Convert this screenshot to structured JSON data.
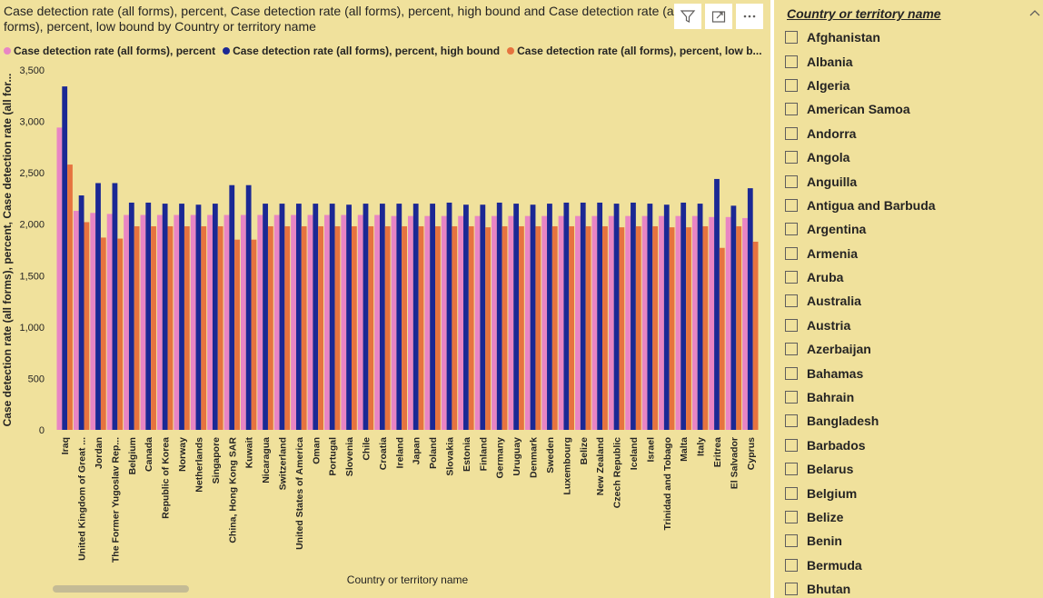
{
  "chart": {
    "title": "Case detection rate (all forms), percent, Case detection rate (all forms), percent, high bound and Case detection rate (all forms), percent, low bound by Country or territory name",
    "header_icons": [
      "filter-icon",
      "focus-mode-icon",
      "more-options-icon"
    ],
    "legend": [
      {
        "label": "Case detection rate (all forms), percent",
        "color": "#e885c4"
      },
      {
        "label": "Case detection rate (all forms), percent, high bound",
        "color": "#1b2894"
      },
      {
        "label": "Case detection rate (all forms), percent, low b...",
        "color": "#e6733f"
      }
    ]
  },
  "chart_data": {
    "type": "bar",
    "title": "Case detection rate (all forms), percent, Case detection rate (all forms), percent, high bound and Case detection rate (all forms), percent, low bound by Country or territory name",
    "xlabel": "Country or territory name",
    "ylabel": "Case detection rate (all forms), percent, Case detection rate (all for...",
    "ylim": [
      0,
      3500
    ],
    "yticks": [
      0,
      500,
      1000,
      1500,
      2000,
      2500,
      3000,
      3500
    ],
    "ytick_labels": [
      "0",
      "500",
      "1,000",
      "1,500",
      "2,000",
      "2,500",
      "3,000",
      "3,500"
    ],
    "grid": false,
    "legend_position": "top",
    "categories": [
      "Iraq",
      "United Kingdom of Great ...",
      "Jordan",
      "The Former Yugoslav Rep...",
      "Belgium",
      "Canada",
      "Republic of Korea",
      "Norway",
      "Netherlands",
      "Singapore",
      "China, Hong Kong SAR",
      "Kuwait",
      "Nicaragua",
      "Switzerland",
      "United States of America",
      "Oman",
      "Portugal",
      "Slovenia",
      "Chile",
      "Croatia",
      "Ireland",
      "Japan",
      "Poland",
      "Slovakia",
      "Estonia",
      "Finland",
      "Germany",
      "Uruguay",
      "Denmark",
      "Sweden",
      "Luxembourg",
      "Belize",
      "New Zealand",
      "Czech Republic",
      "Iceland",
      "Israel",
      "Trinidad and Tobago",
      "Malta",
      "Italy",
      "Eritrea",
      "El Salvador",
      "Cyprus"
    ],
    "series": [
      {
        "name": "Case detection rate (all forms), percent",
        "color": "#e885c4",
        "values": [
          2940,
          2130,
          2110,
          2100,
          2090,
          2090,
          2090,
          2090,
          2090,
          2090,
          2090,
          2090,
          2090,
          2090,
          2090,
          2090,
          2090,
          2090,
          2090,
          2090,
          2080,
          2080,
          2080,
          2080,
          2080,
          2080,
          2080,
          2080,
          2080,
          2080,
          2080,
          2080,
          2080,
          2080,
          2080,
          2080,
          2080,
          2080,
          2080,
          2070,
          2070,
          2060
        ]
      },
      {
        "name": "Case detection rate (all forms), percent, high bound",
        "color": "#1b2894",
        "values": [
          3340,
          2280,
          2400,
          2400,
          2210,
          2210,
          2200,
          2200,
          2190,
          2200,
          2380,
          2380,
          2200,
          2200,
          2200,
          2200,
          2200,
          2190,
          2200,
          2200,
          2200,
          2200,
          2200,
          2210,
          2190,
          2190,
          2210,
          2200,
          2190,
          2200,
          2210,
          2210,
          2210,
          2200,
          2210,
          2200,
          2190,
          2210,
          2200,
          2440,
          2180,
          2350
        ]
      },
      {
        "name": "Case detection rate (all forms), percent, low bound",
        "color": "#e6733f",
        "values": [
          2580,
          2020,
          1870,
          1860,
          1980,
          1980,
          1980,
          1980,
          1980,
          1980,
          1850,
          1850,
          1980,
          1980,
          1980,
          1980,
          1980,
          1980,
          1980,
          1980,
          1980,
          1980,
          1980,
          1980,
          1980,
          1970,
          1980,
          1980,
          1980,
          1980,
          1980,
          1980,
          1980,
          1970,
          1980,
          1980,
          1970,
          1970,
          1980,
          1770,
          1980,
          1830
        ]
      }
    ]
  },
  "slicer": {
    "header": "Country or territory name",
    "collapse_icon": "chevron-up-icon",
    "items": [
      "Afghanistan",
      "Albania",
      "Algeria",
      "American Samoa",
      "Andorra",
      "Angola",
      "Anguilla",
      "Antigua and Barbuda",
      "Argentina",
      "Armenia",
      "Aruba",
      "Australia",
      "Austria",
      "Azerbaijan",
      "Bahamas",
      "Bahrain",
      "Bangladesh",
      "Barbados",
      "Belarus",
      "Belgium",
      "Belize",
      "Benin",
      "Bermuda",
      "Bhutan"
    ]
  }
}
